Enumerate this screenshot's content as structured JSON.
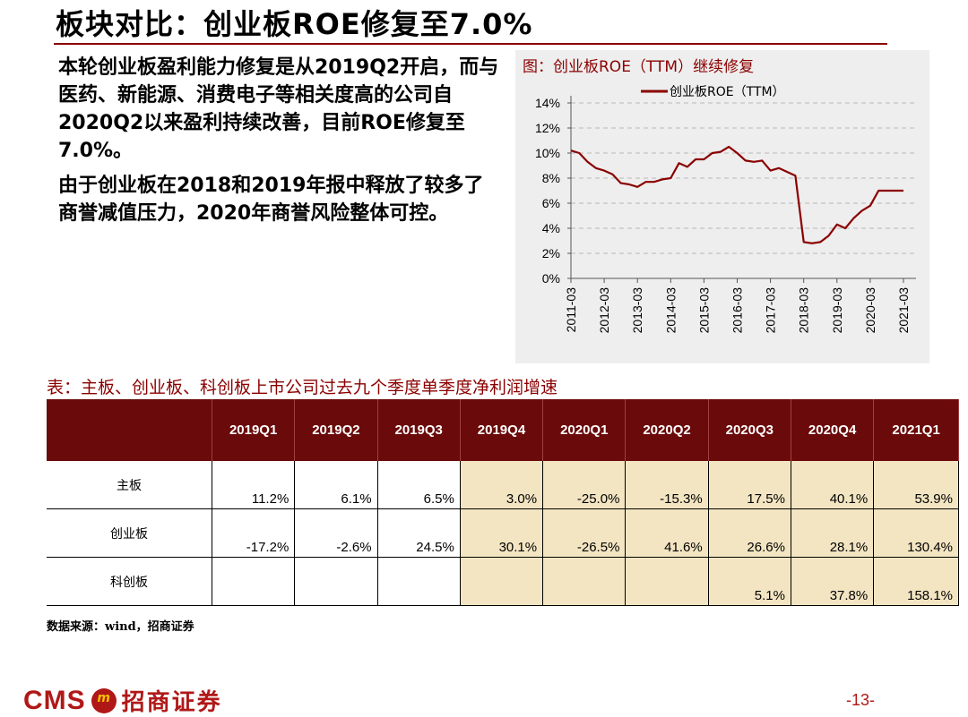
{
  "header": {
    "title": "板块对比：创业板ROE修复至7.0%"
  },
  "body": {
    "paragraph1": "本轮创业板盈利能力修复是从2019Q2开启，而与医药、新能源、消费电子等相关度高的公司自2020Q2以来盈利持续改善，目前ROE修复至7.0%。",
    "paragraph2": "由于创业板在2018和2019年报中释放了较多了商誉减值压力，2020年商誉风险整体可控。"
  },
  "chart": {
    "caption": "图：创业板ROE（TTM）继续修复",
    "legend_label": "创业板ROE（TTM）",
    "line_color": "#8b0000"
  },
  "chart_data": {
    "type": "line",
    "series": [
      {
        "name": "创业板ROE（TTM）",
        "x": [
          "2011-03",
          "2011-06",
          "2011-09",
          "2011-12",
          "2012-03",
          "2012-06",
          "2012-09",
          "2012-12",
          "2013-03",
          "2013-06",
          "2013-09",
          "2013-12",
          "2014-03",
          "2014-06",
          "2014-09",
          "2014-12",
          "2015-03",
          "2015-06",
          "2015-09",
          "2015-12",
          "2016-03",
          "2016-06",
          "2016-09",
          "2016-12",
          "2017-03",
          "2017-06",
          "2017-09",
          "2017-12",
          "2018-03",
          "2018-06",
          "2018-09",
          "2018-12",
          "2019-03",
          "2019-06",
          "2019-09",
          "2019-12",
          "2020-03",
          "2020-06",
          "2020-09",
          "2020-12",
          "2021-03"
        ],
        "values": [
          10.2,
          10.0,
          9.3,
          8.8,
          8.6,
          8.3,
          7.6,
          7.5,
          7.3,
          7.7,
          7.7,
          7.9,
          8.0,
          9.2,
          8.9,
          9.5,
          9.5,
          10.0,
          10.1,
          10.5,
          10.0,
          9.4,
          9.3,
          9.4,
          8.6,
          8.8,
          8.5,
          8.2,
          2.9,
          2.8,
          2.9,
          3.4,
          4.3,
          4.0,
          4.8,
          5.4,
          5.8,
          7.0,
          7.0,
          7.0,
          7.0
        ]
      }
    ],
    "x_ticks": [
      "2011-03",
      "2012-03",
      "2013-03",
      "2014-03",
      "2015-03",
      "2016-03",
      "2017-03",
      "2018-03",
      "2019-03",
      "2020-03",
      "2021-03"
    ],
    "y_ticks": [
      "0%",
      "2%",
      "4%",
      "6%",
      "8%",
      "10%",
      "12%",
      "14%"
    ],
    "ylim": [
      0,
      14
    ],
    "grid": "horizontal dashed",
    "legend": "top-center"
  },
  "table": {
    "caption": "表：主板、创业板、科创板上市公司过去九个季度单季度净利润增速",
    "headers": [
      "2019Q1",
      "2019Q2",
      "2019Q3",
      "2019Q4",
      "2020Q1",
      "2020Q2",
      "2020Q3",
      "2020Q4",
      "2021Q1"
    ],
    "rows": [
      {
        "label": "主板",
        "values": [
          "11.2%",
          "6.1%",
          "6.5%",
          "3.0%",
          "-25.0%",
          "-15.3%",
          "17.5%",
          "40.1%",
          "53.9%"
        ]
      },
      {
        "label": "创业板",
        "values": [
          "-17.2%",
          "-2.6%",
          "24.5%",
          "30.1%",
          "-26.5%",
          "41.6%",
          "26.6%",
          "28.1%",
          "130.4%"
        ]
      },
      {
        "label": "科创板",
        "values": [
          "",
          "",
          "",
          "",
          "",
          "",
          "5.1%",
          "37.8%",
          "158.1%"
        ]
      }
    ]
  },
  "source": "数据来源：wind，招商证券",
  "footer": {
    "logo_text": "CMS",
    "logo_seal": "m",
    "logo_cn": "招商证券",
    "page": "-13-"
  }
}
